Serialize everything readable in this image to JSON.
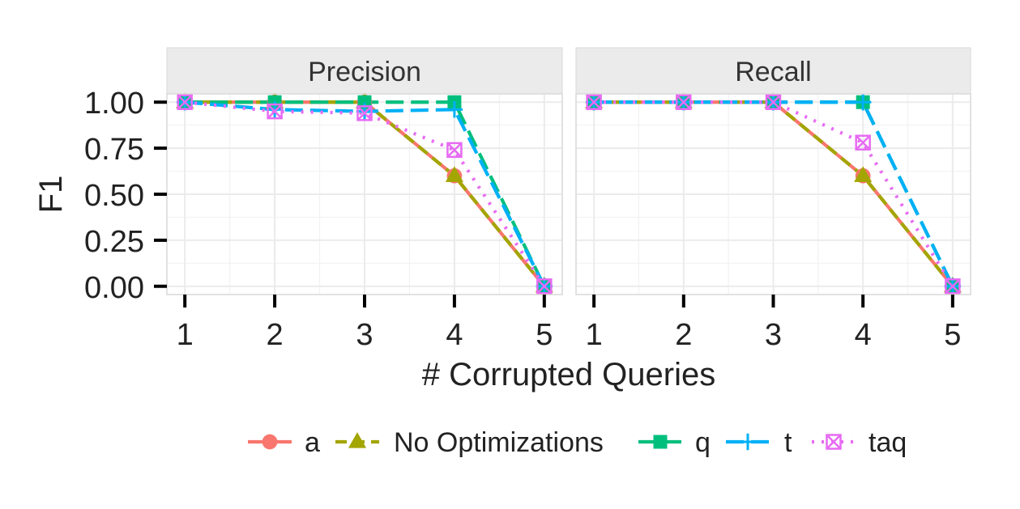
{
  "chart_data": {
    "type": "line",
    "xlabel": "# Corrupted Queries",
    "ylabel": "F1",
    "x": [
      1,
      2,
      3,
      4,
      5
    ],
    "xlim": [
      0.8,
      5.2
    ],
    "ylim": [
      -0.045,
      1.045
    ],
    "yticks": [
      0.0,
      0.25,
      0.5,
      0.75,
      1.0
    ],
    "ytick_labels": [
      "0.00",
      "0.25",
      "0.50",
      "0.75",
      "1.00"
    ],
    "grid": true,
    "legend_position": "bottom",
    "legend": [
      "a",
      "No Optimizations",
      "q",
      "t",
      "taq"
    ],
    "series_styles": [
      {
        "name": "a",
        "color": "#F8766D",
        "dash": "solid",
        "marker": "circle"
      },
      {
        "name": "No Optimizations",
        "color": "#A3A500",
        "dash": "dashed",
        "marker": "triangle"
      },
      {
        "name": "q",
        "color": "#00BF7D",
        "dash": "longdash",
        "marker": "square"
      },
      {
        "name": "t",
        "color": "#00B0F6",
        "dash": "longdash",
        "marker": "plus"
      },
      {
        "name": "taq",
        "color": "#E76BF3",
        "dash": "dotted",
        "marker": "boxcross"
      }
    ],
    "panels": [
      {
        "title": "Precision",
        "series": [
          {
            "name": "a",
            "values": [
              1.0,
              1.0,
              1.0,
              0.6,
              0.0
            ]
          },
          {
            "name": "No Optimizations",
            "values": [
              1.0,
              1.0,
              1.0,
              0.6,
              0.0
            ]
          },
          {
            "name": "q",
            "values": [
              1.0,
              1.0,
              1.0,
              1.0,
              0.0
            ]
          },
          {
            "name": "t",
            "values": [
              1.0,
              0.96,
              0.95,
              0.96,
              0.0
            ]
          },
          {
            "name": "taq",
            "values": [
              1.0,
              0.95,
              0.94,
              0.74,
              0.0
            ]
          }
        ]
      },
      {
        "title": "Recall",
        "series": [
          {
            "name": "a",
            "values": [
              1.0,
              1.0,
              1.0,
              0.6,
              0.0
            ]
          },
          {
            "name": "No Optimizations",
            "values": [
              1.0,
              1.0,
              1.0,
              0.6,
              0.0
            ]
          },
          {
            "name": "q",
            "values": [
              1.0,
              1.0,
              1.0,
              1.0,
              0.0
            ]
          },
          {
            "name": "t",
            "values": [
              1.0,
              1.0,
              1.0,
              1.0,
              0.0
            ]
          },
          {
            "name": "taq",
            "values": [
              1.0,
              1.0,
              1.0,
              0.78,
              0.0
            ]
          }
        ]
      }
    ]
  }
}
